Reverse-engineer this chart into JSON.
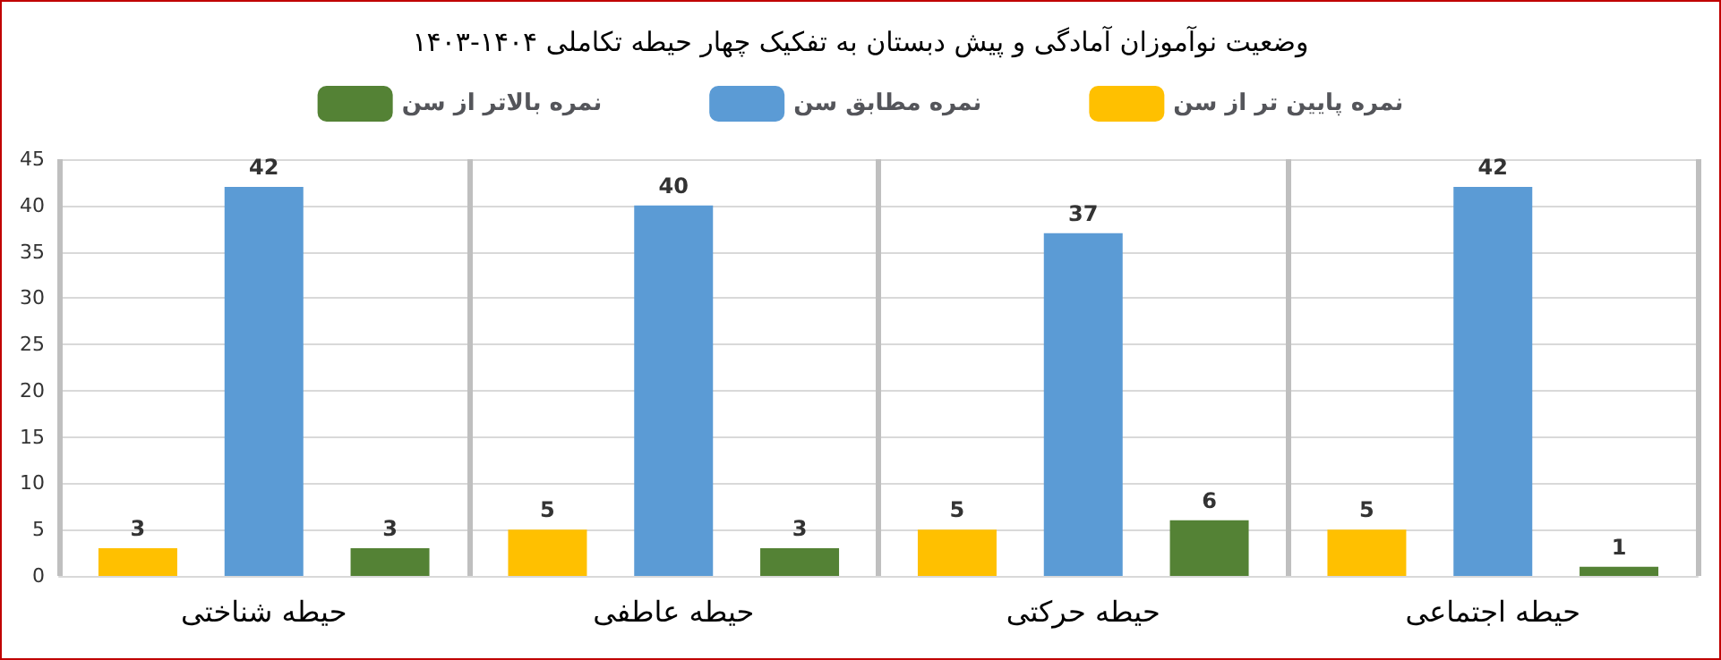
{
  "chart_data": {
    "type": "bar",
    "title": "وضعیت نوآموزان آمادگی و پیش دبستان به تفکیک چهار حیطه تکاملی ۱۴۰۴-۱۴۰۳",
    "categories": [
      "حیطه شناختی",
      "حیطه عاطفی",
      "حیطه حرکتی",
      "حیطه اجتماعی"
    ],
    "series": [
      {
        "name": "نمره پایین تر از سن",
        "color": "#ffc000",
        "values": [
          3,
          5,
          5,
          5
        ]
      },
      {
        "name": "نمره مطابق سن",
        "color": "#5b9bd5",
        "values": [
          42,
          40,
          37,
          42
        ]
      },
      {
        "name": "نمره بالاتر از سن",
        "color": "#548235",
        "values": [
          3,
          3,
          6,
          1
        ]
      }
    ],
    "ylim": [
      0,
      45
    ],
    "yticks": [
      0,
      5,
      10,
      15,
      20,
      25,
      30,
      35,
      40,
      45
    ],
    "grid": "y",
    "legend": "top",
    "data_labels": true
  }
}
